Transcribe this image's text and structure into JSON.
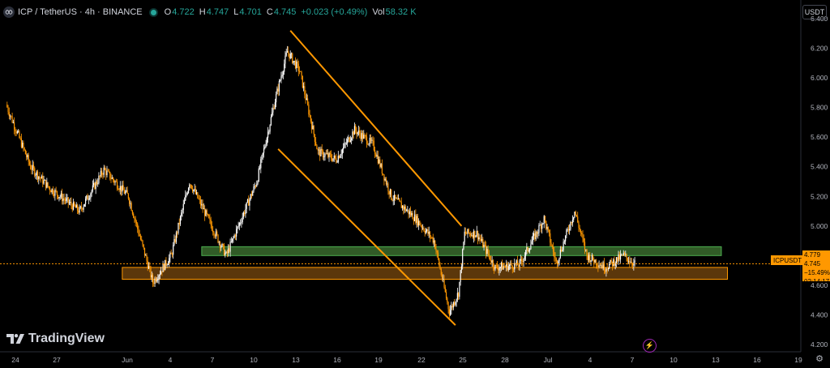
{
  "header": {
    "symbol": "ICP / TetherUS · 4h · BINANCE",
    "open_k": "O",
    "open_v": "4.722",
    "high_k": "H",
    "high_v": "4.747",
    "low_k": "L",
    "low_v": "4.701",
    "close_k": "C",
    "close_v": "4.745",
    "change": "+0.023 (+0.49%)",
    "vol_k": "Vol",
    "vol_v": "58.32 K"
  },
  "currency_button": "USDT",
  "brand": "TradingView",
  "price_tag": {
    "label": "ICPUSDT",
    "top": "4.779",
    "price": "4.745",
    "change": "−15.49%",
    "countdown": "02:14:17"
  },
  "colors": {
    "up": "#ffffff",
    "down": "#ff9800",
    "background": "#000000",
    "channel": "#ff9800",
    "demand_zone": "#3a6b2e",
    "support_zone": "#7a4a0f"
  },
  "chart_data": {
    "type": "candlestick",
    "ylim": [
      4.15,
      6.45
    ],
    "y_ticks": [
      "6.400",
      "6.200",
      "6.000",
      "5.800",
      "5.600",
      "5.400",
      "5.200",
      "5.000",
      "4.800",
      "4.600",
      "4.400",
      "4.200"
    ],
    "x_ticks": [
      "24",
      "27",
      "Jun",
      "4",
      "7",
      "10",
      "13",
      "16",
      "19",
      "22",
      "25",
      "28",
      "Jul",
      "4",
      "7",
      "10",
      "13",
      "16",
      "19"
    ],
    "close_path": [
      {
        "x": 0,
        "y": 5.82
      },
      {
        "x": 4,
        "y": 5.4
      },
      {
        "x": 7,
        "y": 5.26
      },
      {
        "x": 12,
        "y": 5.1
      },
      {
        "x": 16,
        "y": 5.38
      },
      {
        "x": 20,
        "y": 5.2
      },
      {
        "x": 24,
        "y": 4.62
      },
      {
        "x": 27,
        "y": 4.8
      },
      {
        "x": 30,
        "y": 5.3
      },
      {
        "x": 33,
        "y": 5.05
      },
      {
        "x": 36,
        "y": 4.8
      },
      {
        "x": 41,
        "y": 5.3
      },
      {
        "x": 44,
        "y": 5.85
      },
      {
        "x": 46,
        "y": 6.18
      },
      {
        "x": 48,
        "y": 6.05
      },
      {
        "x": 51,
        "y": 5.5
      },
      {
        "x": 54,
        "y": 5.45
      },
      {
        "x": 57,
        "y": 5.65
      },
      {
        "x": 60,
        "y": 5.55
      },
      {
        "x": 63,
        "y": 5.2
      },
      {
        "x": 67,
        "y": 5.05
      },
      {
        "x": 70,
        "y": 4.9
      },
      {
        "x": 72.5,
        "y": 4.42
      },
      {
        "x": 74,
        "y": 4.55
      },
      {
        "x": 75,
        "y": 4.95
      },
      {
        "x": 77,
        "y": 4.95
      },
      {
        "x": 80,
        "y": 4.72
      },
      {
        "x": 84,
        "y": 4.74
      },
      {
        "x": 88,
        "y": 5.05
      },
      {
        "x": 90,
        "y": 4.75
      },
      {
        "x": 93,
        "y": 5.1
      },
      {
        "x": 95,
        "y": 4.8
      },
      {
        "x": 98,
        "y": 4.72
      },
      {
        "x": 101,
        "y": 4.8
      },
      {
        "x": 103,
        "y": 4.74
      }
    ],
    "channel_lines": [
      {
        "x1": 46.5,
        "y1": 6.32,
        "x2": 74.5,
        "y2": 5.0
      },
      {
        "x1": 44.5,
        "y1": 5.52,
        "x2": 73.5,
        "y2": 4.33
      }
    ],
    "zones": [
      {
        "name": "resistance",
        "x1": 32,
        "x2": 117,
        "y1": 4.8,
        "y2": 4.86
      },
      {
        "name": "support",
        "x1": 19,
        "x2": 118,
        "y1": 4.64,
        "y2": 4.72
      }
    ],
    "last_price": 4.745
  }
}
